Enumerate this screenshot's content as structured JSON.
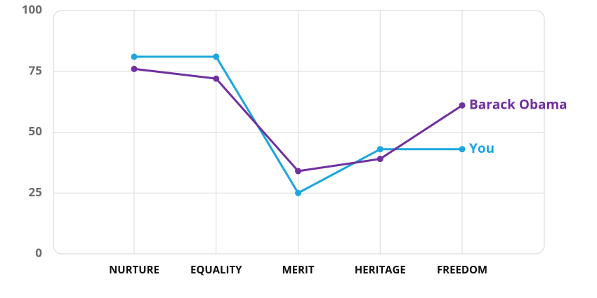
{
  "chart_data": {
    "type": "line",
    "categories": [
      "NURTURE",
      "EQUALITY",
      "MERIT",
      "HERITAGE",
      "FREEDOM"
    ],
    "series": [
      {
        "name": "You",
        "color": "#1ba6e0",
        "values": [
          81,
          81,
          25,
          43,
          43
        ]
      },
      {
        "name": "Barack Obama",
        "color": "#7030a0",
        "values": [
          76,
          72,
          34,
          39,
          61
        ]
      }
    ],
    "ylim": [
      0,
      100
    ],
    "yticks": [
      0,
      25,
      50,
      75,
      100
    ],
    "grid": true
  }
}
